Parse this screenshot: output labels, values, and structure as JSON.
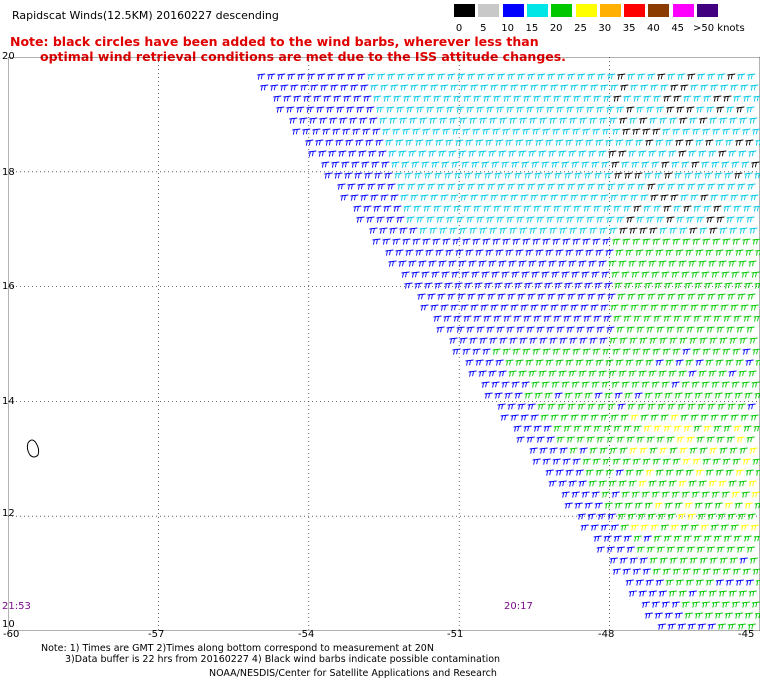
{
  "header": {
    "title": "Rapidscat Winds(12.5KM) 20160227 descending",
    "note_line1": "Note: black circles have been added to the wind barbs, wherever less than",
    "note_line2": "optimal wind retrieval conditions are met due to the ISS attitude changes."
  },
  "speed_scale": {
    "unit": "knots",
    "bins": [
      {
        "label": "0",
        "color": "#000000"
      },
      {
        "label": "5",
        "color": "#c8c8c8"
      },
      {
        "label": "10",
        "color": "#0000ff"
      },
      {
        "label": "15",
        "color": "#00e5e5"
      },
      {
        "label": "20",
        "color": "#00c800"
      },
      {
        "label": "25",
        "color": "#ffff00"
      },
      {
        "label": "30",
        "color": "#ffb000"
      },
      {
        "label": "35",
        "color": "#ff0000"
      },
      {
        "label": "40",
        "color": "#8b3a00"
      },
      {
        "label": "45",
        "color": "#ff00ff"
      },
      {
        "label": ">50 knots",
        "color": "#400080"
      }
    ]
  },
  "map": {
    "lat_labels": [
      "20",
      "18",
      "16",
      "14",
      "12",
      "10"
    ],
    "lon_labels": [
      "-60",
      "-57",
      "-54",
      "-51",
      "-48",
      "-45"
    ],
    "grid": "dotted",
    "lat_range": [
      10,
      20
    ],
    "lon_range": [
      -60,
      -45
    ]
  },
  "times": {
    "left": "21:53",
    "right": "20:17"
  },
  "footer": {
    "line1": "Note: 1) Times are GMT 2)Times along bottom correspond to measurement at 20N",
    "line2": "3)Data buffer is 22 hrs from 20160227 4) Black wind barbs indicate possible contamination",
    "credit": "NOAA/NESDIS/Center for Satellite Applications and Research"
  }
}
